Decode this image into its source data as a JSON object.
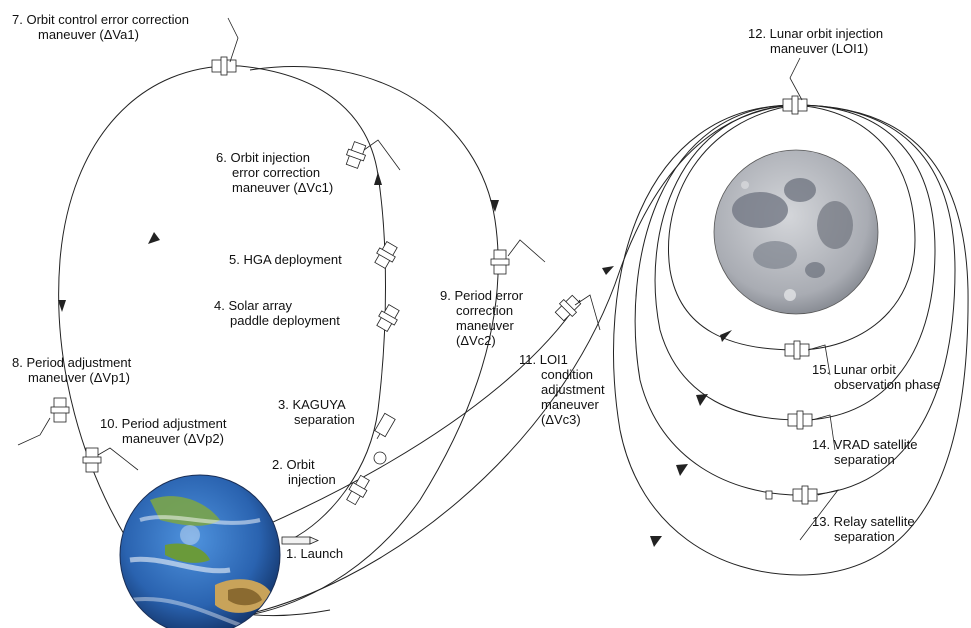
{
  "labels": {
    "launch": [
      "1.  Launch"
    ],
    "orbit_injection": [
      "2. Orbit",
      "injection"
    ],
    "kaguya_separation": [
      "3. KAGUYA",
      "separation"
    ],
    "solar_array": [
      "4. Solar array",
      "paddle deployment"
    ],
    "hga": [
      "5. HGA deployment"
    ],
    "orbit_injection_error": [
      "6. Orbit injection",
      "error correction",
      "maneuver (ΔVc1)"
    ],
    "orbit_control_error": [
      "7.  Orbit control error correction",
      "maneuver (ΔVa1)"
    ],
    "period_adjustment_1": [
      "8. Period adjustment",
      "maneuver (ΔVp1)"
    ],
    "period_error": [
      "9. Period error",
      "correction",
      "maneuver",
      "(ΔVc2)"
    ],
    "period_adjustment_2": [
      "10. Period adjustment",
      "maneuver (ΔVp2)"
    ],
    "loi1_condition": [
      "11. LOI1",
      "condition",
      "adjustment",
      "maneuver",
      "(ΔVc3)"
    ],
    "lunar_orbit_injection": [
      "12. Lunar orbit injection",
      "maneuver (LOI1)"
    ],
    "relay_separation": [
      "13. Relay satellite",
      "separation"
    ],
    "vrad_separation": [
      "14. VRAD satellite",
      "separation"
    ],
    "lunar_observation": [
      "15. Lunar orbit",
      "observation phase"
    ]
  },
  "bodies": {
    "earth": "Earth",
    "moon": "Moon"
  },
  "colors": {
    "line": "#222222",
    "ocean": "#2b6fc0",
    "land": "#6a9a3a",
    "desert": "#c8a35a",
    "moon": "#b9bcc2",
    "maria": "#6f7480"
  }
}
